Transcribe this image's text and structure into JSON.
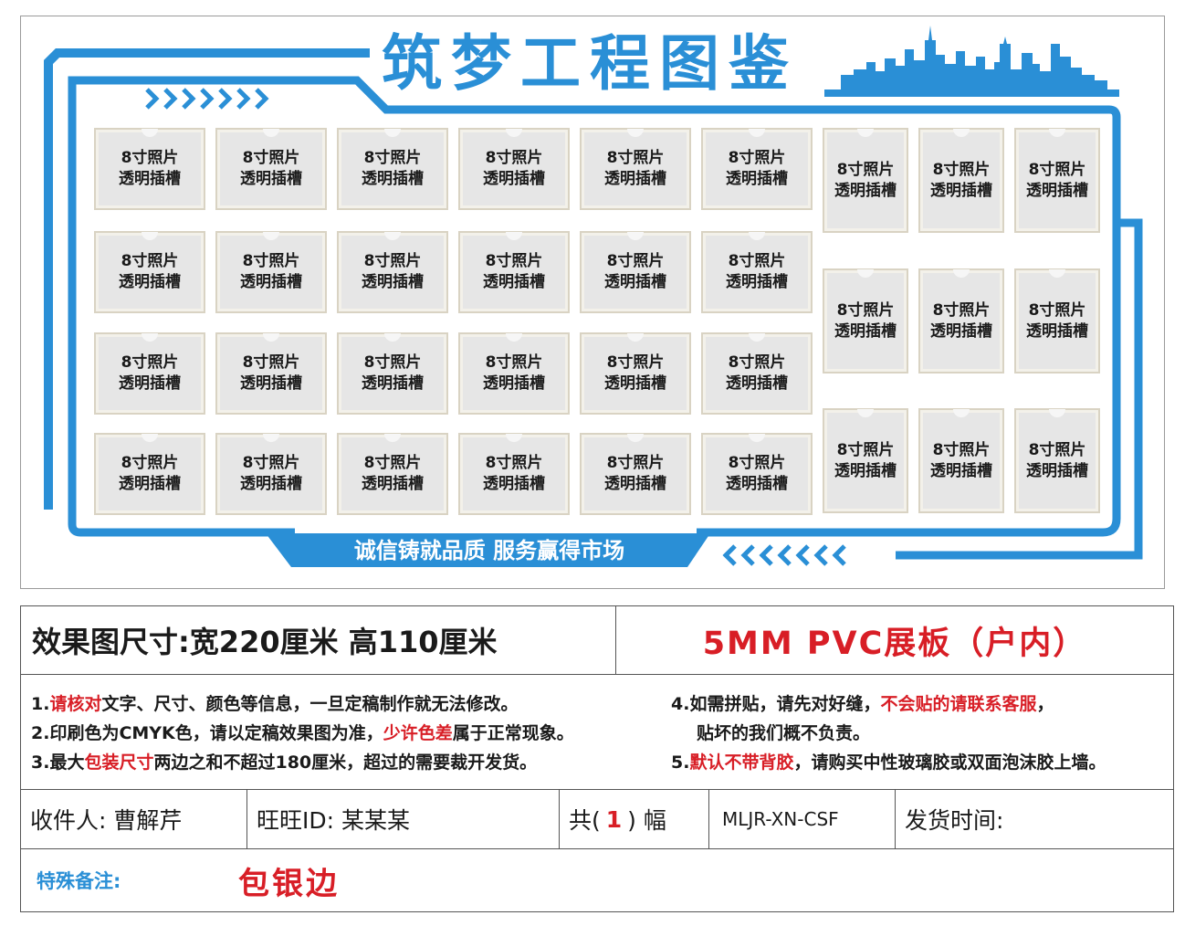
{
  "board": {
    "title": "筑梦工程图鉴",
    "slogan": "诚信铸就品质  服务赢得市场",
    "slot_line1": "8寸照片",
    "slot_line2": "透明插槽",
    "colors": {
      "accent": "#2a8fd6",
      "slot": "#e6e6e6"
    }
  },
  "order": {
    "size_label": "效果图尺寸:宽220厘米  高110厘米",
    "material": "5MM PVC展板（户内）",
    "notes": {
      "n1_prefix": "1.",
      "n1_red": "请核对",
      "n1_rest": "文字、尺寸、颜色等信息，一旦定稿制作就无法修改。",
      "n2_prefix": "2.印刷色为CMYK色，请以定稿效果图为准，",
      "n2_red": "少许色差",
      "n2_rest": "属于正常现象。",
      "n3_prefix": "3.最大",
      "n3_red": "包装尺寸",
      "n3_rest": "两边之和不超过180厘米，超过的需要裁开发货。",
      "n4_prefix": "4.如需拼贴，请先对好缝，",
      "n4_red": "不会贴的请联系客服",
      "n4_rest": "，",
      "n4_cont": "贴坏的我们概不负责。",
      "n5_prefix": "5.",
      "n5_red": "默认不带背胶",
      "n5_rest": "，请购买中性玻璃胶或双面泡沫胶上墙。"
    },
    "recipient": "收件人: 曹解芹",
    "wangwang": "旺旺ID:   某某某",
    "count_prefix": "共(",
    "count_value": "1",
    "count_suffix": ")  幅",
    "code": "MLJR-XN-CSF",
    "ship_time": "发货时间:",
    "remark_label": "特殊备注:",
    "remark_value": "包银边",
    "colors": {
      "red": "#d81e26",
      "blue": "#2a8fd6"
    }
  }
}
